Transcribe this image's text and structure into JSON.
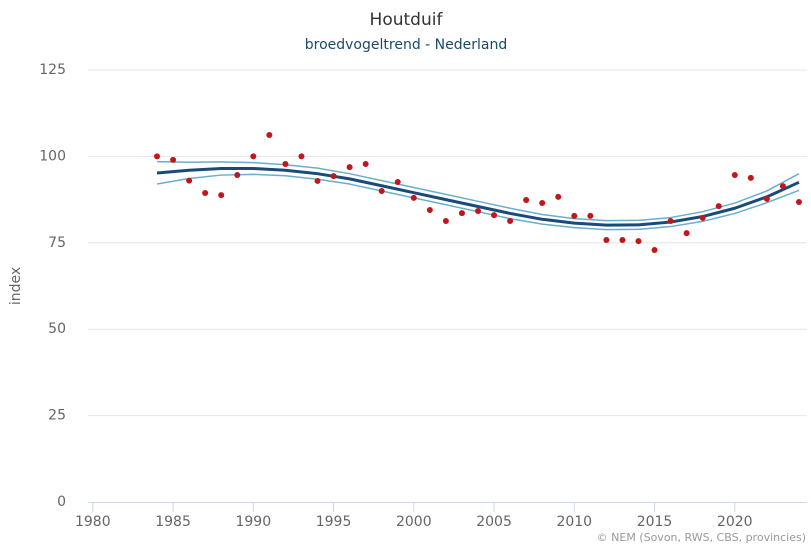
{
  "chart_data": {
    "type": "line",
    "title": "Houtduif",
    "subtitle": "broedvogeltrend - Nederland",
    "y_label": "index",
    "credit": "© NEM (Sovon, RWS, CBS, provincies)",
    "xlim": [
      1979.7,
      2024.5
    ],
    "xticks": [
      1980,
      1985,
      1990,
      1995,
      2000,
      2005,
      2010,
      2015,
      2020
    ],
    "ylim": [
      0,
      125
    ],
    "yticks": [
      0,
      25,
      50,
      75,
      100,
      125
    ],
    "grid": true,
    "series": [
      {
        "mode": "line",
        "color": "#6aaecb",
        "width": 1.5,
        "x": [
          1984,
          1986,
          1988,
          1990,
          1992,
          1994,
          1996,
          1998,
          2000,
          2002,
          2004,
          2006,
          2008,
          2010,
          2012,
          2014,
          2016,
          2018,
          2020,
          2022,
          2024
        ],
        "values": [
          98.5,
          98.3,
          98.4,
          98.2,
          97.6,
          96.6,
          95.0,
          93.0,
          91.0,
          89.0,
          87.0,
          85.0,
          83.2,
          82.0,
          81.4,
          81.5,
          82.3,
          84.0,
          86.5,
          90.0,
          95.0
        ]
      },
      {
        "mode": "line",
        "color": "#6aaecb",
        "width": 1.5,
        "x": [
          1984,
          1986,
          1988,
          1990,
          1992,
          1994,
          1996,
          1998,
          2000,
          2002,
          2004,
          2006,
          2008,
          2010,
          2012,
          2014,
          2016,
          2018,
          2020,
          2022,
          2024
        ],
        "values": [
          92.0,
          93.6,
          94.6,
          94.8,
          94.4,
          93.4,
          92.0,
          90.0,
          88.0,
          86.0,
          84.0,
          82.0,
          80.4,
          79.4,
          78.8,
          78.9,
          79.7,
          81.2,
          83.5,
          86.6,
          90.2
        ]
      },
      {
        "mode": "line",
        "color": "#1a4a7a",
        "width": 3,
        "x": [
          1984,
          1986,
          1988,
          1990,
          1992,
          1994,
          1996,
          1998,
          2000,
          2002,
          2004,
          2006,
          2008,
          2010,
          2012,
          2014,
          2016,
          2018,
          2020,
          2022,
          2024
        ],
        "values": [
          95.2,
          96.0,
          96.5,
          96.5,
          96.0,
          95.0,
          93.5,
          91.5,
          89.5,
          87.5,
          85.5,
          83.5,
          81.8,
          80.7,
          80.1,
          80.2,
          81.0,
          82.6,
          85.0,
          88.3,
          92.5
        ]
      },
      {
        "mode": "markers",
        "color": "#c0161c",
        "width": 3,
        "x": [
          1984,
          1985,
          1986,
          1987,
          1988,
          1989,
          1990,
          1991,
          1992,
          1993,
          1994,
          1995,
          1996,
          1997,
          1998,
          1999,
          2000,
          2001,
          2002,
          2003,
          2004,
          2005,
          2006,
          2007,
          2008,
          2009,
          2010,
          2011,
          2012,
          2013,
          2014,
          2015,
          2016,
          2017,
          2018,
          2019,
          2020,
          2021,
          2022,
          2023,
          2024
        ],
        "values": [
          100,
          99,
          93,
          89.4,
          88.8,
          94.6,
          100,
          106.2,
          97.8,
          100,
          92.9,
          94.3,
          96.9,
          97.8,
          90,
          92.6,
          88,
          84.5,
          81.3,
          83.6,
          84.2,
          83,
          81.3,
          87.4,
          86.5,
          88.3,
          82.8,
          82.8,
          75.8,
          75.8,
          75.5,
          72.9,
          81.3,
          77.8,
          82.2,
          85.6,
          94.6,
          93.8,
          87.7,
          91.4,
          86.8
        ]
      }
    ]
  }
}
